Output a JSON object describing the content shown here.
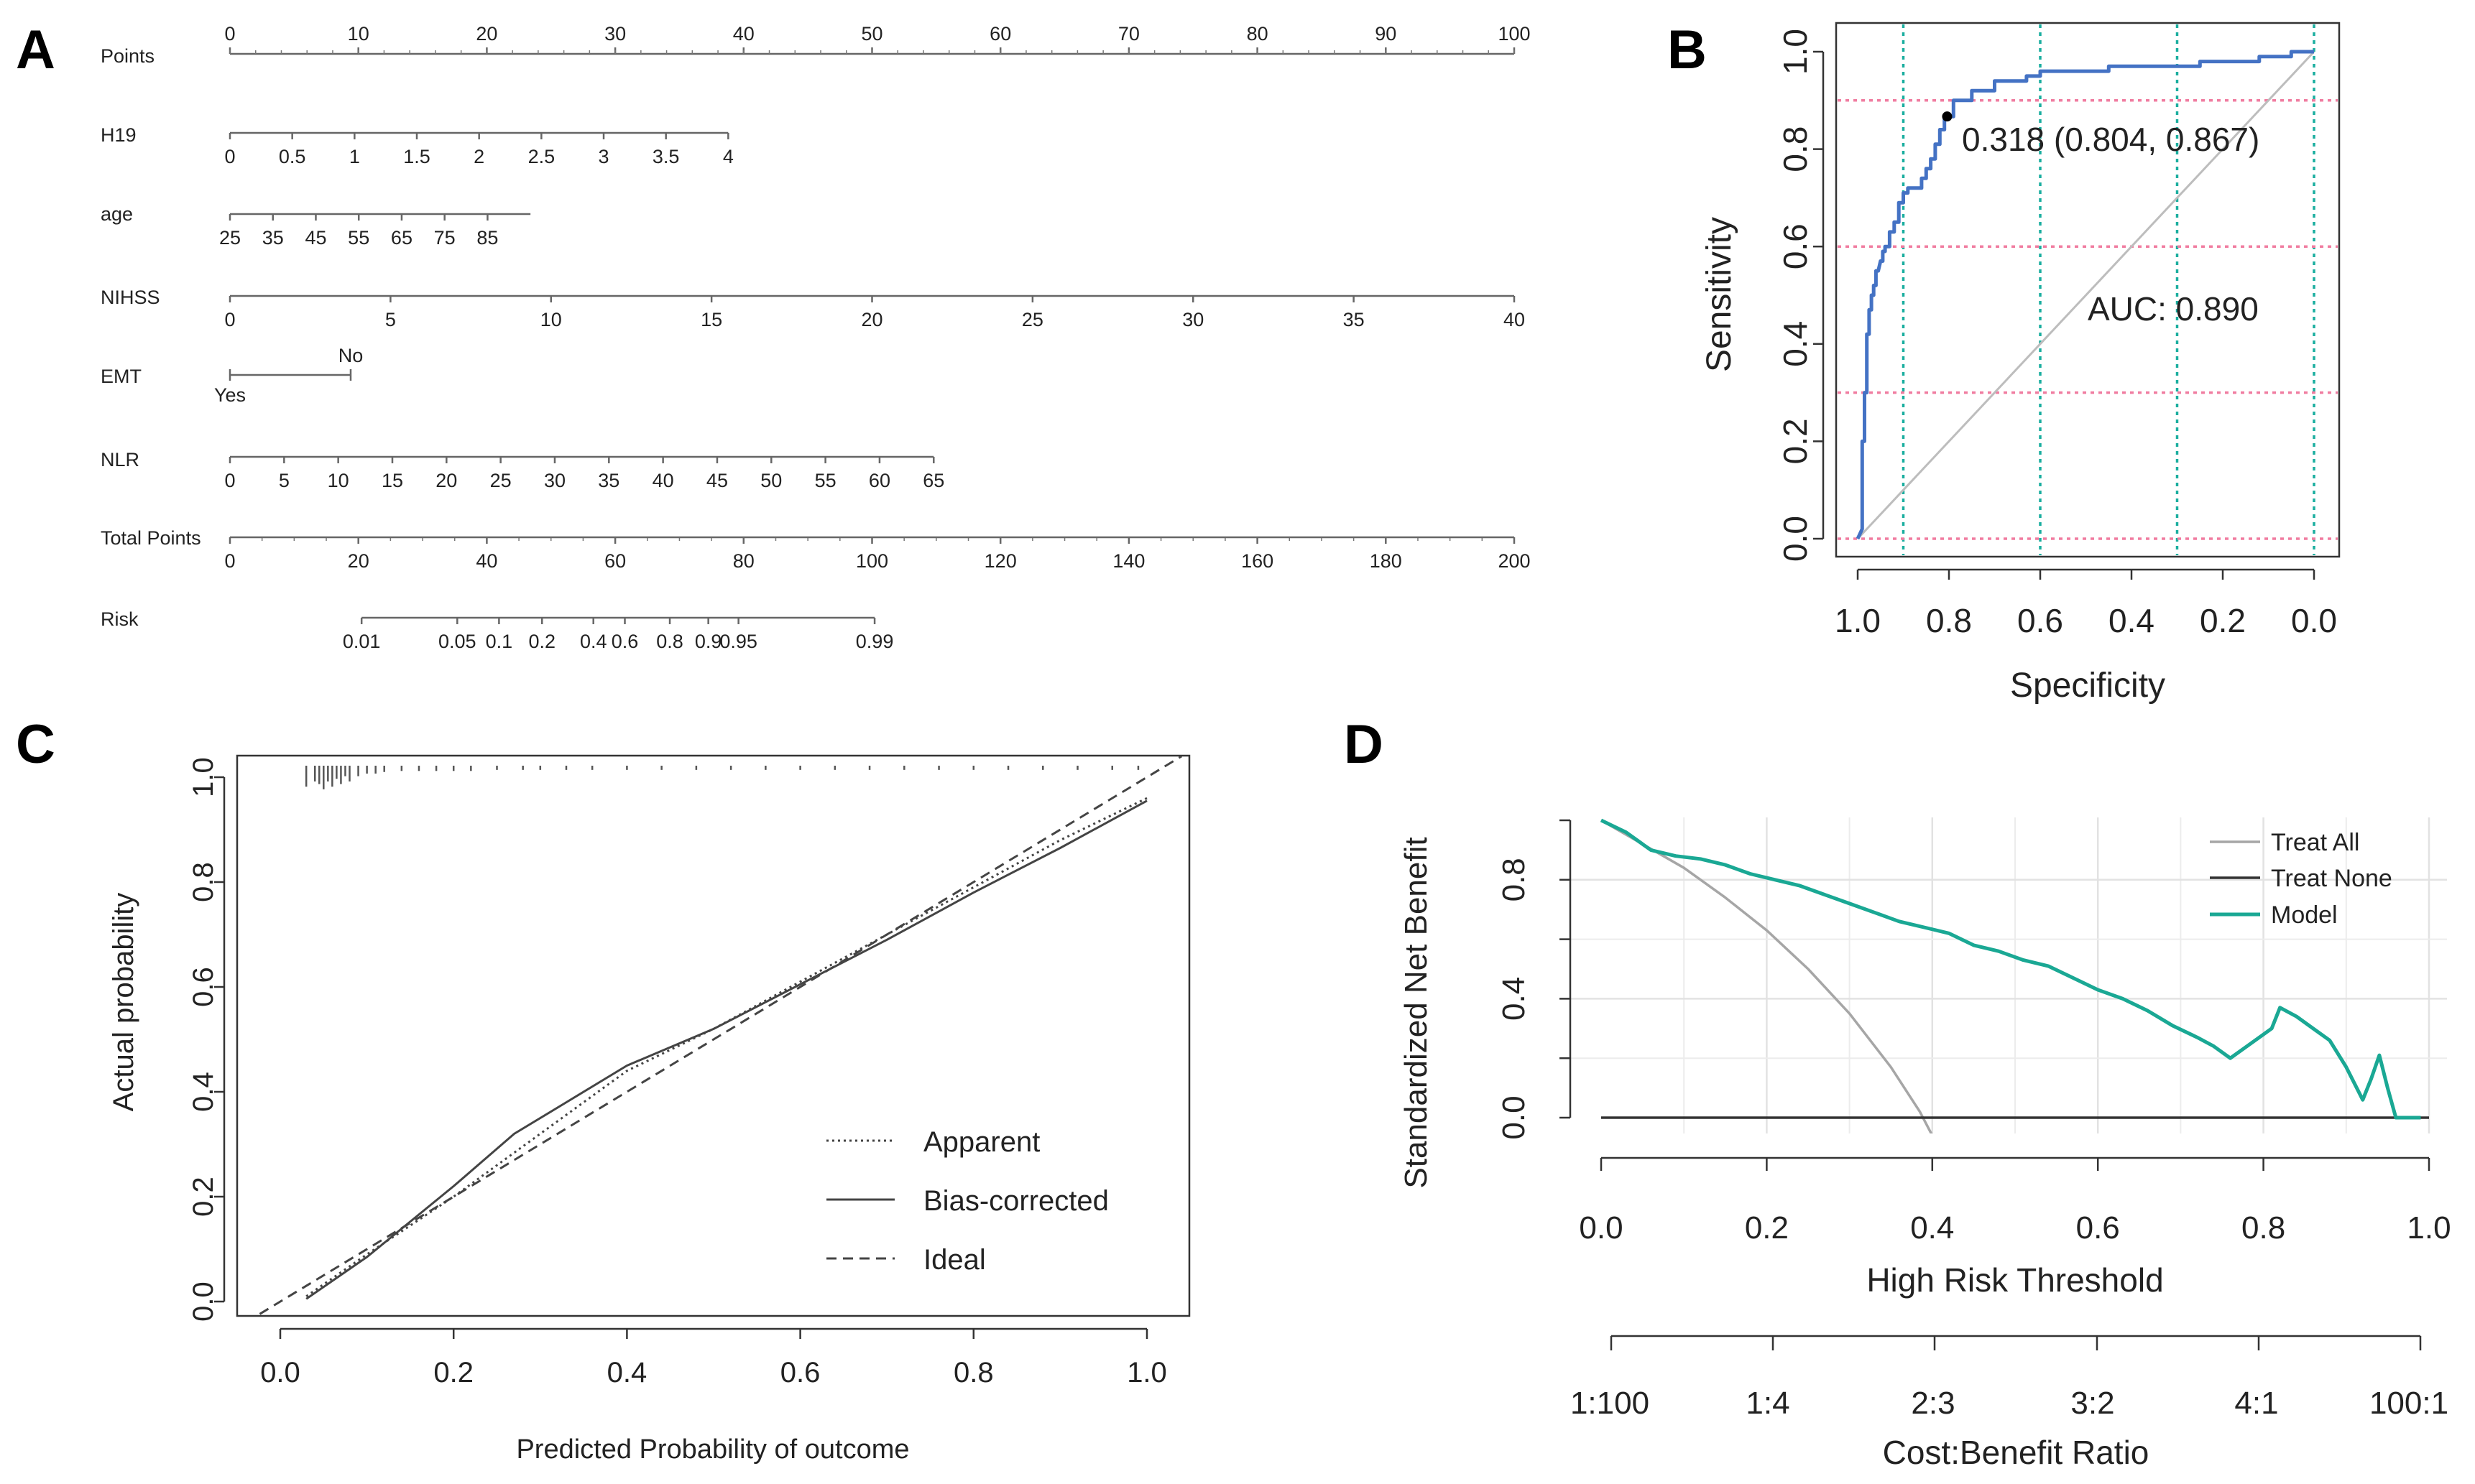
{
  "panel_letters": [
    "A",
    "B",
    "C",
    "D"
  ],
  "chart_data": [
    {
      "type": "nomogram",
      "panel": "A",
      "rows": [
        {
          "name": "Points",
          "kind": "top",
          "from": 0,
          "to": 100,
          "ticks": [
            0,
            10,
            20,
            30,
            40,
            50,
            60,
            70,
            80,
            90,
            100
          ],
          "tick_labels": [
            "0",
            "10",
            "20",
            "30",
            "40",
            "50",
            "60",
            "70",
            "80",
            "90",
            "100"
          ]
        },
        {
          "name": "H19",
          "kind": "below",
          "from": 0,
          "to": 4,
          "points_max": 38.8,
          "ticks": [
            0,
            0.5,
            1,
            1.5,
            2,
            2.5,
            3,
            3.5,
            4
          ],
          "tick_labels": [
            "0",
            "0.5",
            "1",
            "1.5",
            "2",
            "2.5",
            "3",
            "3.5",
            "4"
          ]
        },
        {
          "name": "age",
          "kind": "below",
          "from": 25,
          "to": 95,
          "points_max": 23.4,
          "ticks": [
            25,
            35,
            45,
            55,
            65,
            75,
            85
          ],
          "tick_labels": [
            "25",
            "35",
            "45",
            "55",
            "65",
            "75",
            "85"
          ]
        },
        {
          "name": "NIHSS",
          "kind": "below",
          "from": 0,
          "to": 40,
          "points_max": 100,
          "ticks": [
            0,
            5,
            10,
            15,
            20,
            25,
            30,
            35,
            40
          ],
          "tick_labels": [
            "0",
            "5",
            "10",
            "15",
            "20",
            "25",
            "30",
            "35",
            "40"
          ]
        },
        {
          "name": "EMT",
          "kind": "categorical",
          "levels": [
            {
              "label": "Yes",
              "points": 0,
              "pos": "below"
            },
            {
              "label": "No",
              "points": 9.4,
              "pos": "above"
            }
          ]
        },
        {
          "name": "NLR",
          "kind": "below",
          "from": 0,
          "to": 65,
          "points_max": 54.8,
          "ticks": [
            0,
            5,
            10,
            15,
            20,
            25,
            30,
            35,
            40,
            45,
            50,
            55,
            60,
            65
          ],
          "tick_labels": [
            "0",
            "5",
            "10",
            "15",
            "20",
            "25",
            "30",
            "35",
            "40",
            "45",
            "50",
            "55",
            "60",
            "65"
          ]
        },
        {
          "name": "Total Points",
          "kind": "below",
          "from": 0,
          "to": 200,
          "ticks": [
            0,
            20,
            40,
            60,
            80,
            100,
            120,
            140,
            160,
            180,
            200
          ],
          "tick_labels": [
            "0",
            "20",
            "40",
            "60",
            "80",
            "100",
            "120",
            "140",
            "160",
            "180",
            "200"
          ]
        },
        {
          "name": "Risk",
          "kind": "risk",
          "total_points_at": [
            20.5,
            35.4,
            41.9,
            48.6,
            56.6,
            61.5,
            68.5,
            74.5,
            79.2,
            100.4
          ],
          "tick_labels": [
            "0.01",
            "0.05",
            "0.1",
            "0.2",
            "0.4",
            "0.6",
            "0.8",
            "0.9",
            "0.95",
            "0.99"
          ]
        }
      ]
    },
    {
      "type": "line",
      "panel": "B",
      "title": "",
      "xlabel": "Specificity",
      "ylabel": "Sensitivity",
      "xlim": [
        1.0,
        0.0
      ],
      "ylim": [
        0,
        1
      ],
      "xticks": [
        1.0,
        0.8,
        0.6,
        0.4,
        0.2,
        0.0
      ],
      "xtick_labels": [
        "1.0",
        "0.8",
        "0.6",
        "0.4",
        "0.2",
        "0.0"
      ],
      "yticks": [
        0,
        0.2,
        0.4,
        0.6,
        0.8,
        1.0
      ],
      "ytick_labels": [
        "0.0",
        "0.2",
        "0.4",
        "0.6",
        "0.8",
        "1.0"
      ],
      "grid_x": [
        0.9,
        0.6,
        0.3,
        0.0
      ],
      "grid_y": [
        0.0,
        0.3,
        0.6,
        0.9
      ],
      "auc_label": "AUC: 0.890",
      "threshold_label": "0.318 (0.804, 0.867)",
      "threshold_point": {
        "specificity": 0.804,
        "sensitivity": 0.867
      },
      "colors": {
        "curve": "#4472c4",
        "auc": "#5b8fd0",
        "vgrid": "#1aae9f",
        "hgrid": "#f07ca0",
        "diagonal": "#bdbdbd"
      },
      "series": [
        {
          "values": [
            [
              1.0,
              0.0
            ],
            [
              0.99,
              0.02
            ],
            [
              0.99,
              0.2
            ],
            [
              0.985,
              0.2
            ],
            [
              0.985,
              0.3
            ],
            [
              0.98,
              0.3
            ],
            [
              0.98,
              0.42
            ],
            [
              0.975,
              0.42
            ],
            [
              0.975,
              0.47
            ],
            [
              0.97,
              0.47
            ],
            [
              0.97,
              0.5
            ],
            [
              0.965,
              0.5
            ],
            [
              0.965,
              0.52
            ],
            [
              0.96,
              0.52
            ],
            [
              0.96,
              0.55
            ],
            [
              0.955,
              0.55
            ],
            [
              0.95,
              0.57
            ],
            [
              0.945,
              0.57
            ],
            [
              0.945,
              0.59
            ],
            [
              0.94,
              0.59
            ],
            [
              0.94,
              0.6
            ],
            [
              0.93,
              0.6
            ],
            [
              0.93,
              0.63
            ],
            [
              0.92,
              0.63
            ],
            [
              0.92,
              0.65
            ],
            [
              0.91,
              0.65
            ],
            [
              0.91,
              0.69
            ],
            [
              0.9,
              0.69
            ],
            [
              0.9,
              0.71
            ],
            [
              0.89,
              0.71
            ],
            [
              0.89,
              0.72
            ],
            [
              0.86,
              0.72
            ],
            [
              0.86,
              0.74
            ],
            [
              0.85,
              0.74
            ],
            [
              0.85,
              0.76
            ],
            [
              0.84,
              0.76
            ],
            [
              0.84,
              0.78
            ],
            [
              0.83,
              0.78
            ],
            [
              0.83,
              0.81
            ],
            [
              0.82,
              0.81
            ],
            [
              0.82,
              0.84
            ],
            [
              0.81,
              0.84
            ],
            [
              0.81,
              0.867
            ],
            [
              0.79,
              0.867
            ],
            [
              0.79,
              0.9
            ],
            [
              0.75,
              0.9
            ],
            [
              0.75,
              0.92
            ],
            [
              0.7,
              0.92
            ],
            [
              0.7,
              0.94
            ],
            [
              0.63,
              0.94
            ],
            [
              0.63,
              0.95
            ],
            [
              0.6,
              0.95
            ],
            [
              0.6,
              0.96
            ],
            [
              0.45,
              0.96
            ],
            [
              0.45,
              0.97
            ],
            [
              0.25,
              0.97
            ],
            [
              0.25,
              0.98
            ],
            [
              0.12,
              0.98
            ],
            [
              0.12,
              0.99
            ],
            [
              0.05,
              0.99
            ],
            [
              0.05,
              1.0
            ],
            [
              0.0,
              1.0
            ]
          ]
        }
      ]
    },
    {
      "type": "line",
      "panel": "C",
      "title": "",
      "xlabel": "Predicted Probability of outcome",
      "ylabel": "Actual probability",
      "xlim": [
        0,
        1
      ],
      "ylim": [
        0,
        1
      ],
      "xticks": [
        0.0,
        0.2,
        0.4,
        0.6,
        0.8,
        1.0
      ],
      "xtick_labels": [
        "0.0",
        "0.2",
        "0.4",
        "0.6",
        "0.8",
        "1.0"
      ],
      "yticks": [
        0.0,
        0.2,
        0.4,
        0.6,
        0.8,
        1.0
      ],
      "ytick_labels": [
        "0.0",
        "0.2",
        "0.4",
        "0.6",
        "0.8",
        "1.0"
      ],
      "legend_position": "bottom-right",
      "rug": [
        0.03,
        0.04,
        0.045,
        0.05,
        0.055,
        0.06,
        0.065,
        0.07,
        0.075,
        0.08,
        0.09,
        0.1,
        0.11,
        0.12,
        0.14,
        0.16,
        0.18,
        0.2,
        0.22,
        0.25,
        0.28,
        0.3,
        0.33,
        0.36,
        0.4,
        0.44,
        0.48,
        0.52,
        0.56,
        0.6,
        0.64,
        0.68,
        0.72,
        0.76,
        0.8,
        0.84,
        0.88,
        0.92,
        0.96,
        0.99
      ],
      "rug_lengths": [
        0.04,
        0.03,
        0.035,
        0.045,
        0.03,
        0.04,
        0.025,
        0.035,
        0.02,
        0.03,
        0.02,
        0.015,
        0.015,
        0.012,
        0.01,
        0.01,
        0.01,
        0.01,
        0.01,
        0.008,
        0.008,
        0.008,
        0.008,
        0.008,
        0.008,
        0.008,
        0.008,
        0.008,
        0.008,
        0.008,
        0.008,
        0.008,
        0.008,
        0.008,
        0.008,
        0.008,
        0.008,
        0.008,
        0.008,
        0.008
      ],
      "series": [
        {
          "name": "Apparent",
          "dash": "dotted",
          "values": [
            [
              0.03,
              0.01
            ],
            [
              0.1,
              0.09
            ],
            [
              0.2,
              0.2
            ],
            [
              0.3,
              0.32
            ],
            [
              0.4,
              0.44
            ],
            [
              0.5,
              0.52
            ],
            [
              0.6,
              0.61
            ],
            [
              0.7,
              0.7
            ],
            [
              0.8,
              0.79
            ],
            [
              0.9,
              0.88
            ],
            [
              1.0,
              0.96
            ]
          ]
        },
        {
          "name": "Bias-corrected",
          "dash": "solid",
          "values": [
            [
              0.03,
              0.005
            ],
            [
              0.1,
              0.085
            ],
            [
              0.2,
              0.22
            ],
            [
              0.27,
              0.32
            ],
            [
              0.33,
              0.38
            ],
            [
              0.4,
              0.45
            ],
            [
              0.5,
              0.52
            ],
            [
              0.6,
              0.605
            ],
            [
              0.7,
              0.69
            ],
            [
              0.8,
              0.78
            ],
            [
              0.9,
              0.865
            ],
            [
              1.0,
              0.955
            ]
          ]
        },
        {
          "name": "Ideal",
          "dash": "dashed",
          "values": [
            [
              -0.04,
              -0.04
            ],
            [
              1.04,
              1.04
            ]
          ]
        }
      ]
    },
    {
      "type": "line",
      "panel": "D",
      "title": "",
      "xlabel": "High Risk Threshold",
      "ylabel": "Standardized Net Benefit",
      "xlabel2": "Cost:Benefit Ratio",
      "xlim": [
        0,
        1
      ],
      "ylim": [
        0,
        1
      ],
      "xticks": [
        0.0,
        0.2,
        0.4,
        0.6,
        0.8,
        1.0
      ],
      "xtick_labels": [
        "0.0",
        "0.2",
        "0.4",
        "0.6",
        "0.8",
        "1.0"
      ],
      "yticks": [
        0.0,
        0.4,
        0.8
      ],
      "ytick_labels": [
        "0.0",
        "0.4",
        "0.8"
      ],
      "ratio_tick_labels": [
        "1:100",
        "1:4",
        "2:3",
        "3:2",
        "4:1",
        "100:1"
      ],
      "legend_position": "top-right",
      "series": [
        {
          "name": "Treat All",
          "color": "#a6a6a6",
          "values": [
            [
              0,
              1.0
            ],
            [
              0.05,
              0.92
            ],
            [
              0.1,
              0.84
            ],
            [
              0.15,
              0.74
            ],
            [
              0.2,
              0.63
            ],
            [
              0.25,
              0.5
            ],
            [
              0.3,
              0.35
            ],
            [
              0.35,
              0.17
            ],
            [
              0.385,
              0.02
            ],
            [
              0.4,
              -0.06
            ]
          ]
        },
        {
          "name": "Treat None",
          "color": "#333333",
          "values": [
            [
              0,
              0
            ],
            [
              1,
              0
            ]
          ]
        },
        {
          "name": "Model",
          "color": "#1aa894",
          "values": [
            [
              0,
              1.0
            ],
            [
              0.03,
              0.96
            ],
            [
              0.06,
              0.9
            ],
            [
              0.09,
              0.88
            ],
            [
              0.12,
              0.87
            ],
            [
              0.15,
              0.85
            ],
            [
              0.18,
              0.82
            ],
            [
              0.21,
              0.8
            ],
            [
              0.24,
              0.78
            ],
            [
              0.27,
              0.75
            ],
            [
              0.3,
              0.72
            ],
            [
              0.33,
              0.69
            ],
            [
              0.36,
              0.66
            ],
            [
              0.39,
              0.64
            ],
            [
              0.42,
              0.62
            ],
            [
              0.45,
              0.58
            ],
            [
              0.48,
              0.56
            ],
            [
              0.51,
              0.53
            ],
            [
              0.54,
              0.51
            ],
            [
              0.57,
              0.47
            ],
            [
              0.6,
              0.43
            ],
            [
              0.63,
              0.4
            ],
            [
              0.66,
              0.36
            ],
            [
              0.69,
              0.31
            ],
            [
              0.72,
              0.27
            ],
            [
              0.74,
              0.24
            ],
            [
              0.76,
              0.2
            ],
            [
              0.78,
              0.24
            ],
            [
              0.8,
              0.28
            ],
            [
              0.81,
              0.3
            ],
            [
              0.82,
              0.37
            ],
            [
              0.84,
              0.34
            ],
            [
              0.86,
              0.3
            ],
            [
              0.88,
              0.26
            ],
            [
              0.9,
              0.17
            ],
            [
              0.92,
              0.06
            ],
            [
              0.93,
              0.13
            ],
            [
              0.94,
              0.21
            ],
            [
              0.95,
              0.1
            ],
            [
              0.96,
              0.0
            ],
            [
              0.99,
              0.0
            ]
          ]
        }
      ]
    }
  ]
}
